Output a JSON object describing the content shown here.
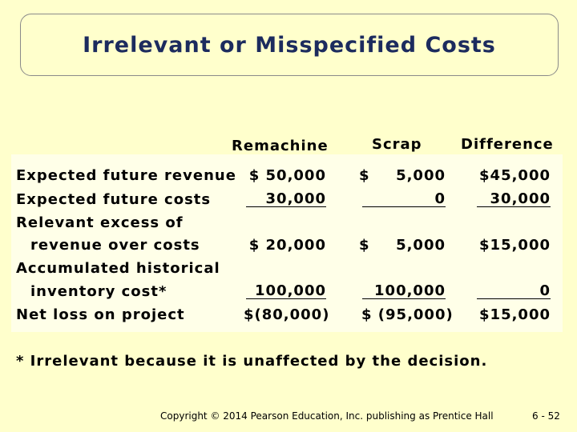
{
  "title": "Irrelevant or Misspecified Costs",
  "table": {
    "columns": [
      "Remachine",
      "Scrap",
      "Difference"
    ],
    "rows": [
      {
        "label": [
          "Expected future revenue"
        ],
        "cells": [
          "$ 50,000",
          {
            "sign": "$",
            "amount": "5,000"
          },
          "$45,000"
        ]
      },
      {
        "label": [
          "Expected future costs"
        ],
        "cells": [
          "30,000",
          "0",
          "30,000"
        ]
      },
      {
        "label": [
          "Relevant excess of",
          "revenue over costs"
        ],
        "cells": [
          "$ 20,000",
          {
            "sign": "$",
            "amount": "5,000"
          },
          "$15,000"
        ]
      },
      {
        "label": [
          "Accumulated historical",
          "inventory cost*"
        ],
        "cells": [
          "100,000",
          "100,000",
          "0"
        ]
      },
      {
        "label": [
          "Net loss on project"
        ],
        "cells": [
          "$(80,000)",
          "$ (95,000)",
          "$15,000"
        ]
      }
    ]
  },
  "footnote": "* Irrelevant because it is unaffected by the decision.",
  "footer": {
    "copyright": "Copyright © 2014 Pearson Education, Inc. publishing as Prentice Hall",
    "page": "6 - 52"
  }
}
